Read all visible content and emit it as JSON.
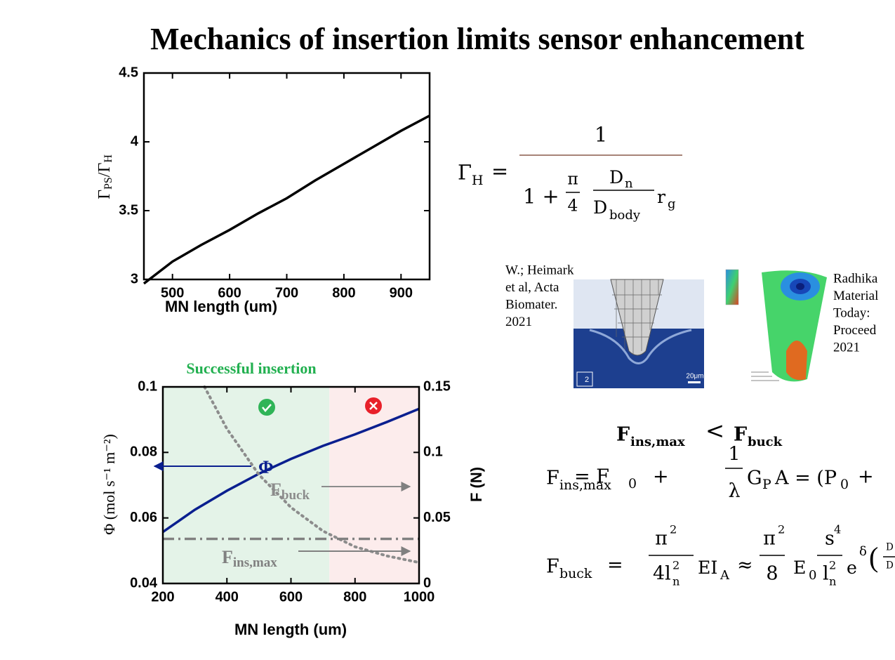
{
  "title": "Mechanics of insertion limits sensor enhancement",
  "chart_data": [
    {
      "type": "line",
      "x": [
        450,
        500,
        550,
        600,
        650,
        700,
        750,
        800,
        850,
        900,
        950
      ],
      "values": [
        2.97,
        3.13,
        3.25,
        3.36,
        3.48,
        3.59,
        3.72,
        3.84,
        3.96,
        4.08,
        4.19
      ],
      "color": "#000000",
      "xlim": [
        450,
        950
      ],
      "ylim": [
        3,
        4.5
      ],
      "xticks": [
        500,
        600,
        700,
        800,
        900
      ],
      "yticks": [
        3,
        3.5,
        4,
        4.5
      ],
      "xlabel": "MN length (um)",
      "ylabel": [
        "Γ",
        "PS",
        "/Γ",
        "H"
      ]
    },
    {
      "type": "line",
      "xlim": [
        200,
        1000
      ],
      "ylim": [
        0.04,
        0.1
      ],
      "y2lim": [
        0,
        0.15
      ],
      "xticks": [
        200,
        400,
        600,
        800,
        1000
      ],
      "yticks": [
        0.04,
        0.06,
        0.08,
        0.1
      ],
      "y2ticks": [
        0,
        0.05,
        0.1,
        0.15
      ],
      "xlabel": "MN length (um)",
      "ylabel": "Φ (mol s⁻¹ m⁻²)",
      "y2label": "F (N)",
      "regions": [
        {
          "from": 200,
          "to": 720,
          "color": "#e4f3e8"
        },
        {
          "from": 720,
          "to": 1000,
          "color": "#fcecec"
        }
      ],
      "region_label": "Successful insertion",
      "series": [
        {
          "name": "Φ",
          "color": "#0a1f8f",
          "dash": "solid",
          "x": [
            200,
            300,
            400,
            500,
            600,
            700,
            800,
            900,
            1000
          ],
          "values": [
            0.0557,
            0.0625,
            0.0683,
            0.0735,
            0.078,
            0.082,
            0.0855,
            0.0893,
            0.0933
          ]
        },
        {
          "name": "F",
          "subscript": "buck",
          "color": "#8c8c8c",
          "dash": "dotted",
          "axis": "y2",
          "x": [
            330,
            400,
            500,
            600,
            700,
            800,
            900,
            1000
          ],
          "values": [
            0.15,
            0.118,
            0.083,
            0.058,
            0.04,
            0.028,
            0.021,
            0.016
          ]
        },
        {
          "name": "F",
          "subscript": "ins,max",
          "color": "#808080",
          "dash": "dashdot",
          "axis": "y2",
          "x": [
            200,
            1000
          ],
          "values": [
            0.034,
            0.034
          ]
        }
      ]
    }
  ],
  "equations": [
    [
      "Γ",
      "H",
      "=",
      "1",
      "1 +",
      "π",
      "4",
      "D",
      "n",
      "D",
      "body",
      "r",
      "g"
    ],
    [
      "F",
      "ins,max",
      "<",
      "F",
      "buck"
    ],
    [
      "F",
      "ins,max",
      "= F",
      "0",
      "+",
      "1",
      "λ",
      "G",
      "P",
      "A = (P",
      "0",
      "+"
    ],
    [
      "F",
      "buck",
      "=",
      "π",
      "2",
      "4l",
      "n",
      "2",
      "EI",
      "A",
      "≈",
      "π",
      "2",
      "8",
      "E",
      "0",
      "s",
      "4",
      "l",
      "n",
      "2",
      "e",
      "δ",
      "D",
      "D"
    ]
  ],
  "figures": [
    {
      "caption": [
        "W.; Heimark",
        "et al, Acta",
        "Biomater.",
        "2021"
      ],
      "labels": [
        "20μm",
        "2"
      ]
    },
    {
      "caption": [
        "Radhika",
        "Material",
        "Today:",
        "Proceed",
        "2021"
      ]
    }
  ]
}
